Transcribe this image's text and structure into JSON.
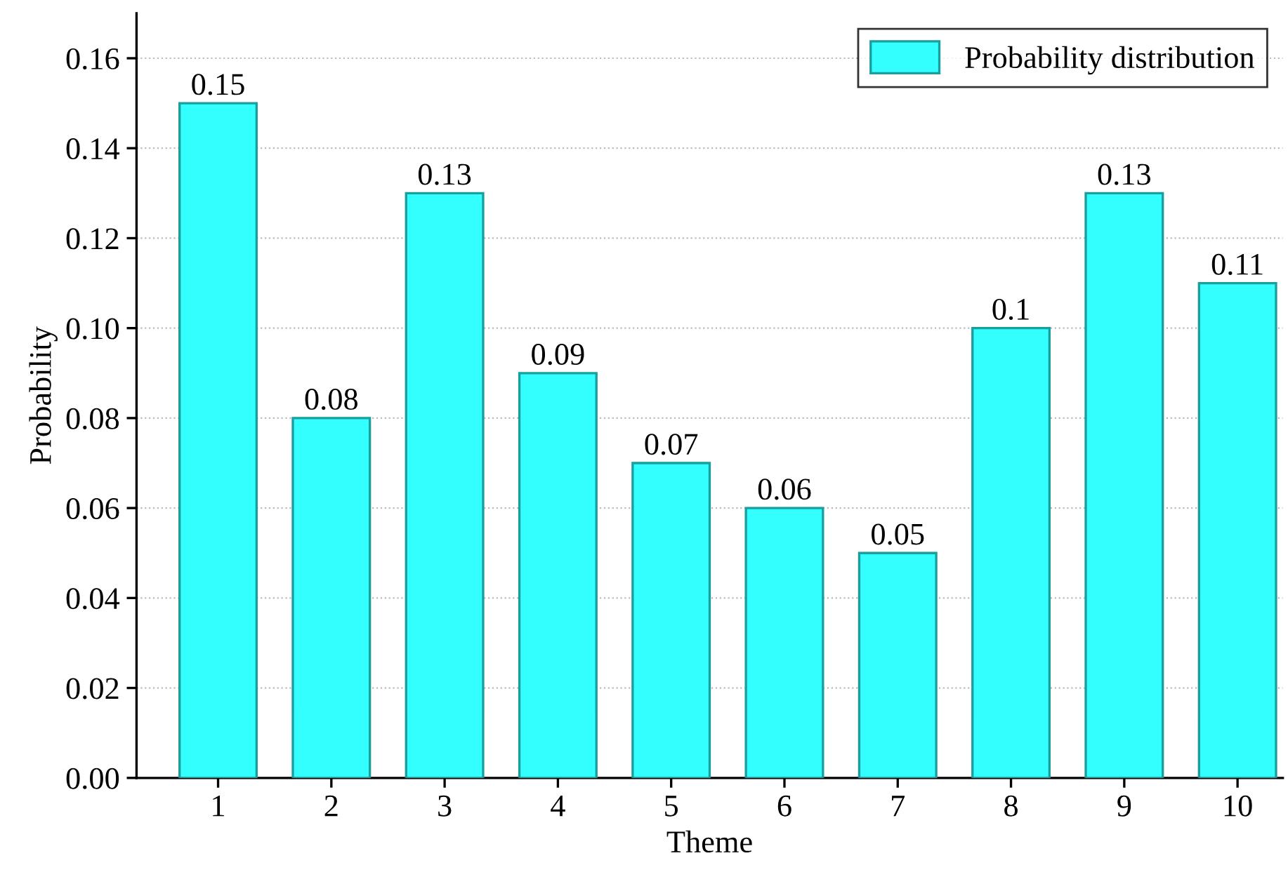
{
  "chart_data": {
    "type": "bar",
    "xlabel": "Theme",
    "ylabel": "Probability",
    "categories": [
      "1",
      "2",
      "3",
      "4",
      "5",
      "6",
      "7",
      "8",
      "9",
      "10"
    ],
    "series": [
      {
        "name": "Probability distribution",
        "color": "#33ffff",
        "values": [
          0.15,
          0.08,
          0.13,
          0.09,
          0.07,
          0.06,
          0.05,
          0.1,
          0.13,
          0.11
        ]
      }
    ],
    "ylim": [
      0,
      0.17
    ],
    "yticks": [
      {
        "value": 0,
        "label": "0.00"
      },
      {
        "value": 0.02,
        "label": "0.02"
      },
      {
        "value": 0.04,
        "label": "0.04"
      },
      {
        "value": 0.06,
        "label": "0.06"
      },
      {
        "value": 0.08,
        "label": "0.08"
      },
      {
        "value": 0.1,
        "label": "0.10"
      },
      {
        "value": 0.12,
        "label": "0.12"
      },
      {
        "value": 0.14,
        "label": "0.14"
      },
      {
        "value": 0.16,
        "label": "0.16"
      }
    ],
    "grid": "y",
    "legend": "top right",
    "data_labels": true
  }
}
